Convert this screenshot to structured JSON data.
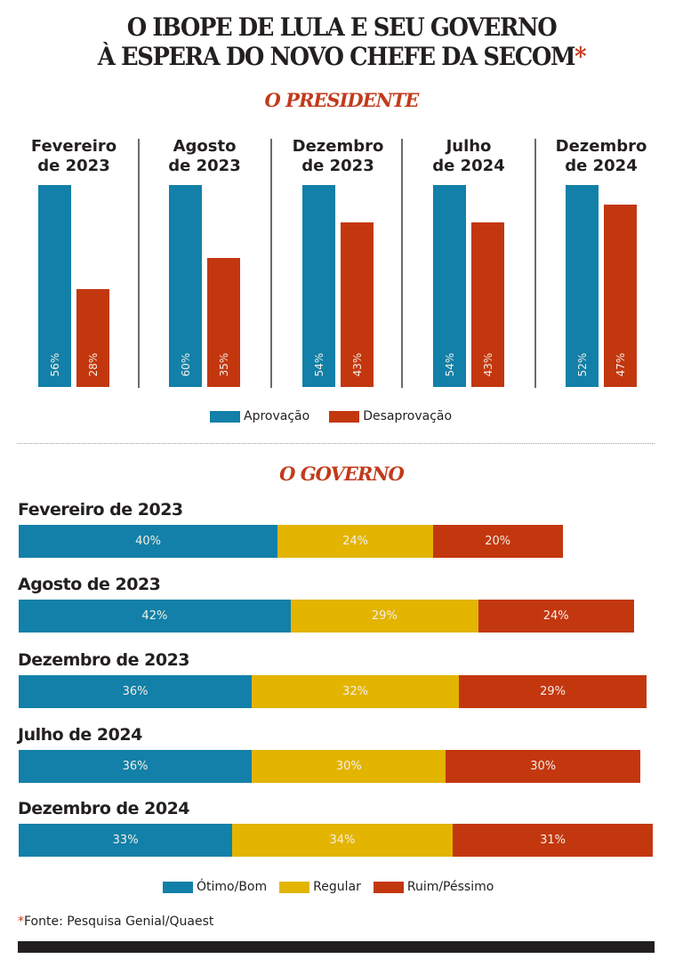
{
  "title": {
    "line1": "O IBOPE DE LULA E SEU GOVERNO",
    "line2": "À ESPERA DO NOVO CHEFE DA SECOM",
    "asterisk": "*"
  },
  "colors": {
    "blue": "#1280a8",
    "red": "#c3370f",
    "yellow": "#e3b400",
    "section_title": "#c23a1b"
  },
  "chart_data": [
    {
      "type": "bar",
      "title": "O PRESIDENTE",
      "categories": [
        [
          "Fevereiro",
          "de 2023"
        ],
        [
          "Agosto",
          "de 2023"
        ],
        [
          "Dezembro",
          "de 2023"
        ],
        [
          "Julho",
          "de 2024"
        ],
        [
          "Dezembro",
          "de 2024"
        ]
      ],
      "series": [
        {
          "name": "Aprovação",
          "color": "#1280a8",
          "values": [
            56,
            60,
            54,
            54,
            52
          ],
          "labels": [
            "56%",
            "60%",
            "54%",
            "54%",
            "52%"
          ]
        },
        {
          "name": "Desaprovação",
          "color": "#c3370f",
          "values": [
            28,
            35,
            43,
            43,
            47
          ],
          "labels": [
            "28%",
            "35%",
            "43%",
            "43%",
            "47%"
          ]
        }
      ],
      "legend": "bottom-center",
      "xlabel": "",
      "ylabel": ""
    },
    {
      "type": "bar",
      "orientation": "horizontal-stacked",
      "title": "O GOVERNO",
      "categories": [
        "Fevereiro de 2023",
        "Agosto de 2023",
        "Dezembro de 2023",
        "Julho de 2024",
        "Dezembro de 2024"
      ],
      "series": [
        {
          "name": "Ótimo/Bom",
          "color": "#1280a8",
          "values": [
            40,
            42,
            36,
            36,
            33
          ],
          "labels": [
            "40%",
            "42%",
            "36%",
            "36%",
            "33%"
          ]
        },
        {
          "name": "Regular",
          "color": "#e3b400",
          "values": [
            24,
            29,
            32,
            30,
            34
          ],
          "labels": [
            "24%",
            "29%",
            "32%",
            "30%",
            "34%"
          ]
        },
        {
          "name": "Ruim/Péssimo",
          "color": "#c3370f",
          "values": [
            20,
            24,
            29,
            30,
            31
          ],
          "labels": [
            "20%",
            "24%",
            "29%",
            "30%",
            "31%"
          ]
        }
      ],
      "legend": "bottom-center",
      "xlabel": "",
      "ylabel": ""
    }
  ],
  "source": {
    "asterisk": "*",
    "text": "Fonte: Pesquisa Genial/Quaest"
  }
}
